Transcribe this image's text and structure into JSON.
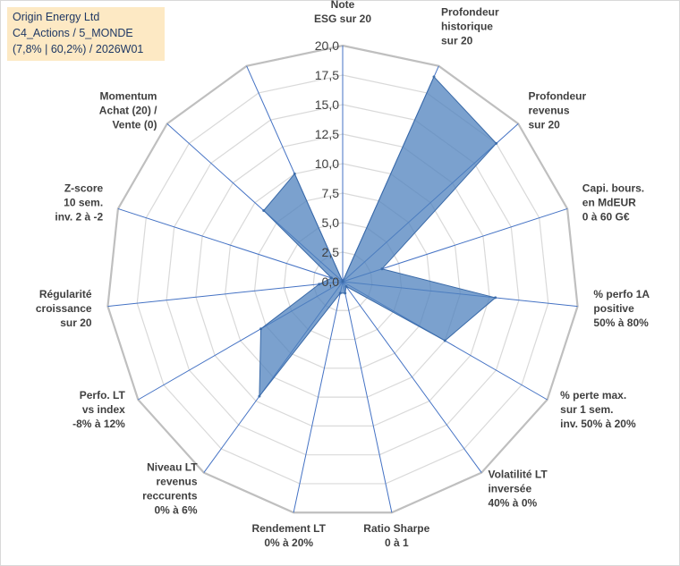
{
  "chart_data": {
    "type": "radar",
    "title_lines": [
      "Origin Energy Ltd",
      "C4_Actions / 5_MONDE",
      "(7,8% | 60,2%) / 2026W01"
    ],
    "rmin": 0,
    "rmax": 20,
    "rstep": 2.5,
    "ticks": [
      "0,0",
      "2,5",
      "5,0",
      "7,5",
      "10,0",
      "12,5",
      "15,0",
      "17,5",
      "20,0"
    ],
    "series": [
      {
        "name": "Origin Energy Ltd",
        "color": "#4f81bd",
        "fill": "#4f81bd",
        "fill_opacity": 0.75,
        "values": [
          0,
          19,
          17.5,
          3.5,
          13,
          10,
          0.5,
          1,
          1,
          12,
          8,
          2,
          1,
          9,
          10
        ]
      }
    ],
    "axes": [
      {
        "lines": [
          "Note",
          "ESG sur 20"
        ]
      },
      {
        "lines": [
          "Profondeur",
          "historique",
          "sur 20"
        ]
      },
      {
        "lines": [
          "Profondeur",
          "revenus",
          "sur 20"
        ]
      },
      {
        "lines": [
          "Capi. bours.",
          "en MdEUR",
          "0 à 60 G€"
        ]
      },
      {
        "lines": [
          "% perfo 1A",
          "positive",
          "50% à 80%"
        ]
      },
      {
        "lines": [
          "% perte max.",
          "sur 1 sem.",
          "inv. 50% à 20%"
        ]
      },
      {
        "lines": [
          "Volatilité LT",
          "inversée",
          "40% à 0%"
        ]
      },
      {
        "lines": [
          "Ratio Sharpe",
          "0 à 1"
        ]
      },
      {
        "lines": [
          "Rendement LT",
          "0% à 20%"
        ]
      },
      {
        "lines": [
          "Niveau LT",
          "revenus",
          "reccurents",
          "0% à 6%"
        ]
      },
      {
        "lines": [
          "Perfo. LT",
          "vs index",
          "-8% à 12%"
        ]
      },
      {
        "lines": [
          "Régularité",
          "croissance",
          "sur 20"
        ]
      },
      {
        "lines": [
          "Z-score",
          "10 sem.",
          "inv. 2 à -2"
        ]
      },
      {
        "lines": [
          "Momentum",
          "Achat (20) /",
          "Vente (0)"
        ]
      },
      {
        "lines": []
      }
    ],
    "grid_color": "#d9d9d9",
    "spoke_color": "#4472c4"
  }
}
